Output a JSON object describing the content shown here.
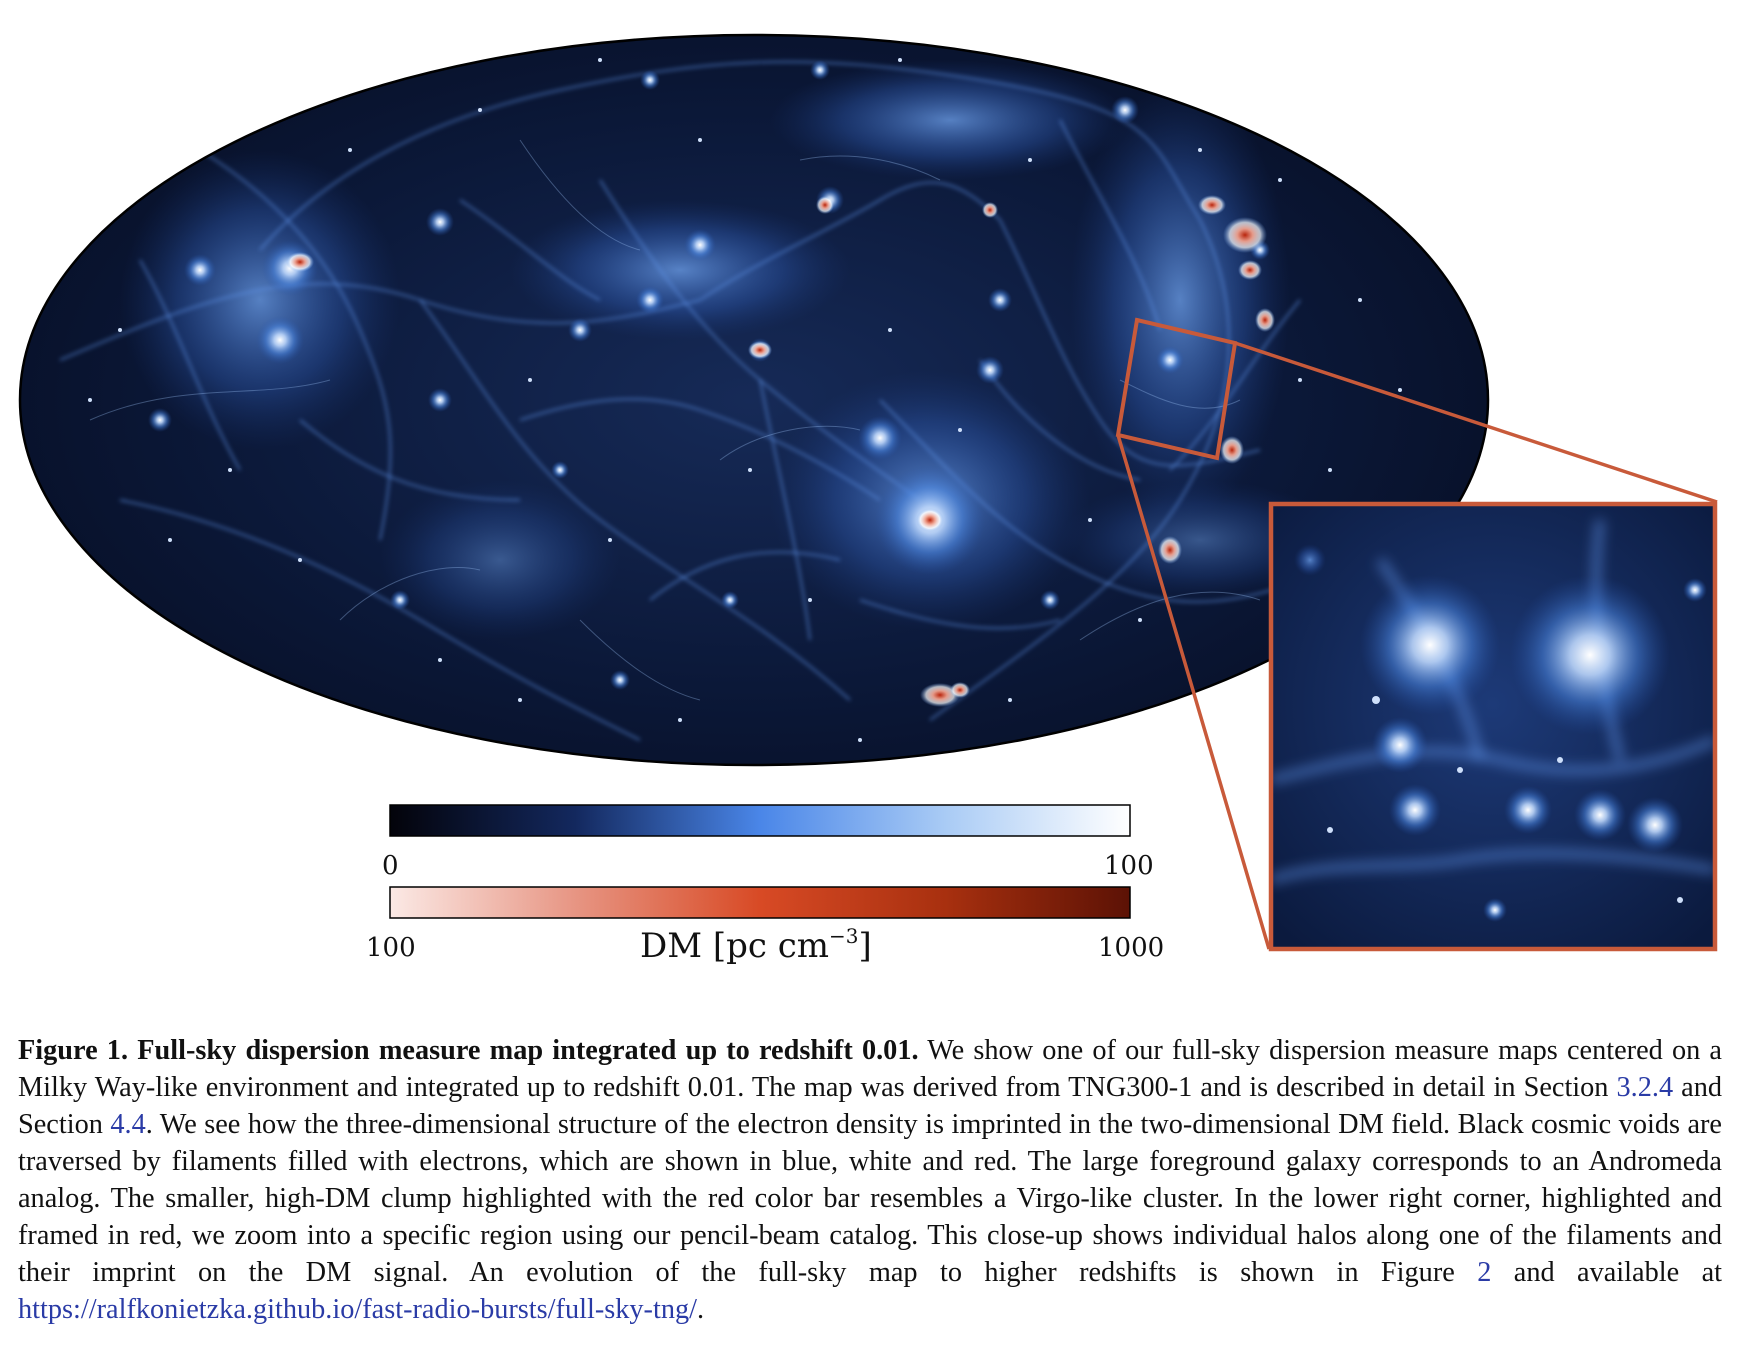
{
  "colorbar_blue": {
    "min_label": "0",
    "max_label": "100",
    "colors": [
      "#03030a",
      "#13285e",
      "#4a86e8",
      "#a9cbf5",
      "#ffffff"
    ]
  },
  "colorbar_red": {
    "min_label": "100",
    "max_label": "1000",
    "colors": [
      "#fbe9e5",
      "#e79583",
      "#d84a25",
      "#a8300f",
      "#5c1205"
    ]
  },
  "colorbar_axis": {
    "label_main": "DM [pc cm",
    "label_exp": "−3",
    "label_end": "]"
  },
  "highlight_color": "#c85a3a",
  "caption": {
    "figure_label": "Figure 1.",
    "title": "Full-sky dispersion measure map integrated up to redshift 0.01.",
    "text_1": "We show one of our full-sky dispersion measure maps centered on a Milky Way-like environment and integrated up to redshift 0.01. The map was derived from TNG300-1 and is described in detail in Section",
    "ref_1": "3.2.4",
    "text_2": "and Section",
    "ref_2": "4.4",
    "text_3": ". We see how the three-dimensional structure of the electron density is imprinted in the two-dimensional DM field. Black cosmic voids are traversed by filaments filled with electrons, which are shown in blue, white and red. The large foreground galaxy corresponds to an Andromeda analog. The smaller, high-DM clump highlighted with the red color bar resembles a Virgo-like cluster. In the lower right corner, highlighted and framed in red, we zoom into a specific region using our pencil-beam catalog. This close-up shows individual halos along one of the filaments and their imprint on the DM signal. An evolution of the full-sky map to higher redshifts is shown in Figure",
    "ref_3": "2",
    "text_4": "and available at",
    "url": "https://ralfkonietzka.github.io/fast-radio-bursts/full-sky-tng/",
    "text_5": "."
  }
}
